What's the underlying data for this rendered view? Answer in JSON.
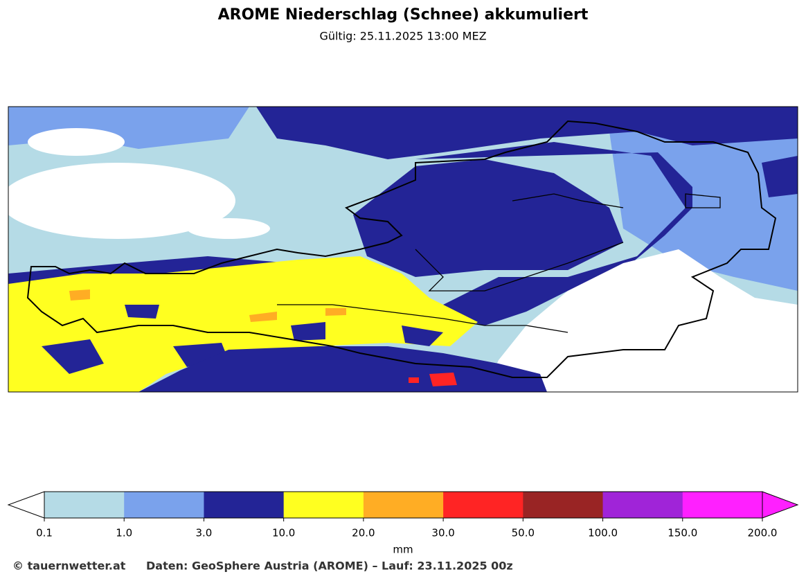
{
  "header": {
    "title": "AROME Niederschlag (Schnee) akkumuliert",
    "subtitle": "Gültig: 25.11.2025 13:00 MEZ"
  },
  "legend": {
    "ticks": [
      "0.1",
      "1.0",
      "3.0",
      "10.0",
      "20.0",
      "30.0",
      "50.0",
      "100.0",
      "150.0",
      "200.0"
    ],
    "colors": [
      "#b5dbe6",
      "#7aa2ec",
      "#232496",
      "#ffff20",
      "#ffad24",
      "#ff2424",
      "#992424",
      "#a024d8",
      "#ff20ff"
    ],
    "under_color": "#ffffff",
    "over_color": "#ff20ff",
    "unit": "mm"
  },
  "footer": {
    "copyright": "© tauernwetter.at",
    "source": "Daten: GeoSphere Austria (AROME) – Lauf: 23.11.2025 00z"
  }
}
